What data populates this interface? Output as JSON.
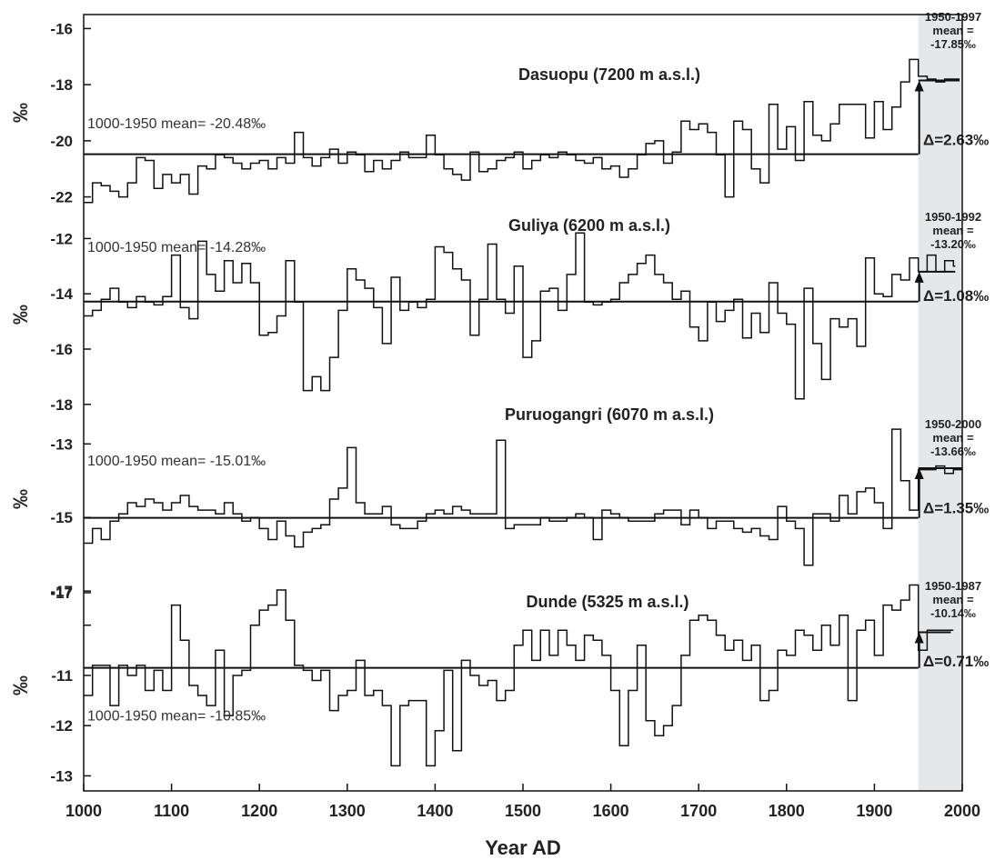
{
  "colors": {
    "line": "#111111",
    "shade": "#e6e7e9",
    "text": "#222222",
    "background": "#ffffff"
  },
  "chart_data": {
    "type": "line",
    "style": "step",
    "xlabel": "Year AD",
    "ylabel": "‰",
    "xlim": [
      1000,
      2000
    ],
    "xticks": [
      1000,
      1100,
      1200,
      1300,
      1400,
      1500,
      1600,
      1700,
      1800,
      1900,
      2000
    ],
    "shaded_range": [
      1950,
      2000
    ],
    "grid": false,
    "panels": [
      {
        "title": "Dasuopu (7200 m a.s.l.)",
        "ylim": [
          -22.5,
          -15.5
        ],
        "yticks": [
          -16,
          -18,
          -20,
          -22
        ],
        "baseline_label": "1000-1950 mean= -20.48‰",
        "baseline_mean": -20.48,
        "recent_lines": [
          "1950-1997",
          "mean =",
          "-17.85‰"
        ],
        "recent_range": [
          1950,
          1997
        ],
        "recent_mean": -17.85,
        "delta_label": "Δ=2.63‰",
        "x": [
          1000,
          1010,
          1020,
          1030,
          1040,
          1050,
          1060,
          1070,
          1080,
          1090,
          1100,
          1110,
          1120,
          1130,
          1140,
          1150,
          1160,
          1170,
          1180,
          1190,
          1200,
          1210,
          1220,
          1230,
          1240,
          1250,
          1260,
          1270,
          1280,
          1290,
          1300,
          1310,
          1320,
          1330,
          1340,
          1350,
          1360,
          1370,
          1380,
          1390,
          1400,
          1410,
          1420,
          1430,
          1440,
          1450,
          1460,
          1470,
          1480,
          1490,
          1500,
          1510,
          1520,
          1530,
          1540,
          1550,
          1560,
          1570,
          1580,
          1590,
          1600,
          1610,
          1620,
          1630,
          1640,
          1650,
          1660,
          1670,
          1680,
          1690,
          1700,
          1710,
          1720,
          1730,
          1740,
          1750,
          1760,
          1770,
          1780,
          1790,
          1800,
          1810,
          1820,
          1830,
          1840,
          1850,
          1860,
          1870,
          1880,
          1890,
          1900,
          1910,
          1920,
          1930,
          1940,
          1950,
          1960,
          1970,
          1980,
          1990
        ],
        "values": [
          -22.2,
          -21.5,
          -21.6,
          -21.8,
          -22.0,
          -21.5,
          -20.6,
          -20.7,
          -21.7,
          -21.2,
          -21.5,
          -21.2,
          -21.9,
          -20.9,
          -21.0,
          -20.5,
          -20.6,
          -20.8,
          -21.0,
          -20.8,
          -20.7,
          -21.0,
          -20.6,
          -20.8,
          -19.7,
          -20.6,
          -20.9,
          -20.6,
          -20.3,
          -20.8,
          -20.4,
          -20.5,
          -21.1,
          -20.7,
          -21.0,
          -20.7,
          -20.4,
          -20.6,
          -20.6,
          -19.8,
          -20.5,
          -21.0,
          -21.2,
          -21.4,
          -20.4,
          -21.1,
          -21.0,
          -20.7,
          -20.6,
          -20.4,
          -21.0,
          -20.7,
          -20.5,
          -20.6,
          -20.4,
          -20.5,
          -20.7,
          -20.8,
          -20.6,
          -21.0,
          -20.9,
          -21.3,
          -21.0,
          -20.5,
          -20.1,
          -20.0,
          -20.8,
          -20.4,
          -19.3,
          -19.6,
          -19.4,
          -19.7,
          -20.5,
          -22.0,
          -19.3,
          -19.6,
          -21.0,
          -21.5,
          -18.7,
          -20.3,
          -19.5,
          -20.7,
          -18.6,
          -19.8,
          -20.0,
          -19.4,
          -18.7,
          -18.7,
          -18.7,
          -19.9,
          -18.6,
          -19.6,
          -18.8,
          -17.9,
          -17.1,
          -17.7,
          -17.8,
          -17.9,
          -17.8,
          -17.8
        ]
      },
      {
        "title": "Guliya (6200 m a.s.l.)",
        "ylim": [
          -18.5,
          -11.0
        ],
        "yticks": [
          -12,
          -14,
          -16,
          -18
        ],
        "baseline_label": "1000-1950 mean= -14.28‰",
        "baseline_mean": -14.28,
        "recent_lines": [
          "1950-1992",
          "mean =",
          "-13.20‰"
        ],
        "recent_range": [
          1950,
          1992
        ],
        "recent_mean": -13.2,
        "delta_label": "Δ=1.08‰",
        "x": [
          1000,
          1010,
          1020,
          1030,
          1040,
          1050,
          1060,
          1070,
          1080,
          1090,
          1100,
          1110,
          1120,
          1130,
          1140,
          1150,
          1160,
          1170,
          1180,
          1190,
          1200,
          1210,
          1220,
          1230,
          1240,
          1250,
          1260,
          1270,
          1280,
          1290,
          1300,
          1310,
          1320,
          1330,
          1340,
          1350,
          1360,
          1370,
          1380,
          1390,
          1400,
          1410,
          1420,
          1430,
          1440,
          1450,
          1460,
          1470,
          1480,
          1490,
          1500,
          1510,
          1520,
          1530,
          1540,
          1550,
          1560,
          1570,
          1580,
          1590,
          1600,
          1610,
          1620,
          1630,
          1640,
          1650,
          1660,
          1670,
          1680,
          1690,
          1700,
          1710,
          1720,
          1730,
          1740,
          1750,
          1760,
          1770,
          1780,
          1790,
          1800,
          1810,
          1820,
          1830,
          1840,
          1850,
          1860,
          1870,
          1880,
          1890,
          1900,
          1910,
          1920,
          1930,
          1940,
          1950,
          1960,
          1970,
          1980,
          1990
        ],
        "values": [
          -14.8,
          -14.6,
          -14.2,
          -13.8,
          -14.3,
          -14.5,
          -14.1,
          -14.3,
          -14.4,
          -14.1,
          -12.6,
          -14.5,
          -14.9,
          -12.1,
          -13.3,
          -13.9,
          -12.8,
          -13.6,
          -12.9,
          -13.6,
          -15.5,
          -15.4,
          -14.8,
          -12.8,
          -14.3,
          -17.5,
          -17.0,
          -17.5,
          -16.3,
          -14.6,
          -13.1,
          -13.5,
          -13.8,
          -14.5,
          -15.8,
          -13.4,
          -14.6,
          -14.3,
          -14.5,
          -14.2,
          -12.3,
          -12.5,
          -13.1,
          -13.5,
          -15.5,
          -14.2,
          -12.2,
          -14.2,
          -14.7,
          -13.0,
          -16.3,
          -15.7,
          -13.9,
          -13.8,
          -14.6,
          -13.3,
          -11.8,
          -14.3,
          -14.4,
          -14.3,
          -14.2,
          -13.6,
          -13.3,
          -12.9,
          -12.6,
          -13.3,
          -13.6,
          -14.2,
          -13.9,
          -15.2,
          -15.7,
          -14.3,
          -15.0,
          -14.6,
          -14.2,
          -15.6,
          -14.7,
          -15.4,
          -13.6,
          -14.7,
          -15.1,
          -17.8,
          -13.8,
          -15.8,
          -17.1,
          -14.9,
          -15.2,
          -14.9,
          -15.9,
          -12.7,
          -14.0,
          -14.1,
          -13.3,
          -13.5,
          -12.7,
          -13.2,
          -12.6,
          -13.2,
          -12.8,
          -13.0
        ]
      },
      {
        "title": "Puruogangri (6070 m a.s.l.)",
        "ylim": [
          -16.7,
          -12.3
        ],
        "yticks": [
          -13,
          -15,
          -17
        ],
        "baseline_label": "1000-1950 mean= -15.01‰",
        "baseline_mean": -15.01,
        "recent_lines": [
          "1950-2000",
          "mean =",
          "-13.66‰"
        ],
        "recent_range": [
          1950,
          2000
        ],
        "recent_mean": -13.66,
        "delta_label": "Δ=1.35‰",
        "x": [
          1000,
          1010,
          1020,
          1030,
          1040,
          1050,
          1060,
          1070,
          1080,
          1090,
          1100,
          1110,
          1120,
          1130,
          1140,
          1150,
          1160,
          1170,
          1180,
          1190,
          1200,
          1210,
          1220,
          1230,
          1240,
          1250,
          1260,
          1270,
          1280,
          1290,
          1300,
          1310,
          1320,
          1330,
          1340,
          1350,
          1360,
          1370,
          1380,
          1390,
          1400,
          1410,
          1420,
          1430,
          1440,
          1450,
          1460,
          1470,
          1480,
          1490,
          1500,
          1510,
          1520,
          1530,
          1540,
          1550,
          1560,
          1570,
          1580,
          1590,
          1600,
          1610,
          1620,
          1630,
          1640,
          1650,
          1660,
          1670,
          1680,
          1690,
          1700,
          1710,
          1720,
          1730,
          1740,
          1750,
          1760,
          1770,
          1780,
          1790,
          1800,
          1810,
          1820,
          1830,
          1840,
          1850,
          1860,
          1870,
          1880,
          1890,
          1900,
          1910,
          1920,
          1930,
          1940,
          1950,
          1960,
          1970,
          1980,
          1990
        ],
        "values": [
          -15.7,
          -15.3,
          -15.6,
          -15.1,
          -14.9,
          -14.6,
          -14.7,
          -14.5,
          -14.6,
          -14.8,
          -14.6,
          -14.4,
          -14.7,
          -14.8,
          -14.8,
          -14.9,
          -14.6,
          -14.9,
          -15.1,
          -15.0,
          -15.3,
          -15.6,
          -15.1,
          -15.5,
          -15.8,
          -15.4,
          -15.3,
          -15.2,
          -14.5,
          -14.2,
          -13.1,
          -14.6,
          -14.9,
          -14.9,
          -14.7,
          -15.2,
          -15.3,
          -15.3,
          -15.1,
          -14.9,
          -14.8,
          -14.9,
          -14.7,
          -14.8,
          -14.9,
          -14.9,
          -14.9,
          -12.9,
          -15.3,
          -15.2,
          -15.2,
          -15.2,
          -15.0,
          -15.1,
          -15.1,
          -15.0,
          -14.9,
          -15.0,
          -15.6,
          -14.8,
          -14.9,
          -15.0,
          -15.1,
          -15.1,
          -15.1,
          -14.9,
          -14.8,
          -14.8,
          -15.2,
          -14.8,
          -15.0,
          -15.3,
          -15.1,
          -15.1,
          -15.3,
          -15.4,
          -15.3,
          -15.5,
          -15.6,
          -14.7,
          -15.1,
          -15.3,
          -16.3,
          -14.9,
          -14.9,
          -15.1,
          -14.4,
          -14.9,
          -14.3,
          -14.2,
          -14.6,
          -15.3,
          -12.6,
          -14.0,
          -14.8,
          -13.7,
          -13.7,
          -13.6,
          -13.8,
          -13.7
        ]
      },
      {
        "title": "Dunde (5325 m a.s.l.)",
        "ylim": [
          -13.3,
          -9.1
        ],
        "yticks": [
          -10,
          -11,
          -12,
          -13
        ],
        "top_tick_label": "-17",
        "baseline_label": "1000-1950 mean= -10.85‰",
        "baseline_mean": -10.85,
        "recent_lines": [
          "1950-1987",
          "mean =",
          "-10.14‰"
        ],
        "recent_range": [
          1950,
          1987
        ],
        "recent_mean": -10.14,
        "delta_label": "Δ=0.71‰",
        "x": [
          1000,
          1010,
          1020,
          1030,
          1040,
          1050,
          1060,
          1070,
          1080,
          1090,
          1100,
          1110,
          1120,
          1130,
          1140,
          1150,
          1160,
          1170,
          1180,
          1190,
          1200,
          1210,
          1220,
          1230,
          1240,
          1250,
          1260,
          1270,
          1280,
          1290,
          1300,
          1310,
          1320,
          1330,
          1340,
          1350,
          1360,
          1370,
          1380,
          1390,
          1400,
          1410,
          1420,
          1430,
          1440,
          1450,
          1460,
          1470,
          1480,
          1490,
          1500,
          1510,
          1520,
          1530,
          1540,
          1550,
          1560,
          1570,
          1580,
          1590,
          1600,
          1610,
          1620,
          1630,
          1640,
          1650,
          1660,
          1670,
          1680,
          1690,
          1700,
          1710,
          1720,
          1730,
          1740,
          1750,
          1760,
          1770,
          1780,
          1790,
          1800,
          1810,
          1820,
          1830,
          1840,
          1850,
          1860,
          1870,
          1880,
          1890,
          1900,
          1910,
          1920,
          1930,
          1940,
          1950,
          1960,
          1970,
          1980,
          1990
        ],
        "values": [
          -11.4,
          -10.8,
          -10.8,
          -11.6,
          -10.8,
          -11.0,
          -10.8,
          -11.3,
          -10.9,
          -11.3,
          -9.6,
          -10.3,
          -11.2,
          -11.4,
          -11.6,
          -10.5,
          -11.8,
          -11.0,
          -10.9,
          -10.0,
          -9.7,
          -9.6,
          -9.3,
          -9.9,
          -10.8,
          -10.9,
          -11.1,
          -10.9,
          -11.7,
          -11.4,
          -11.3,
          -10.7,
          -11.4,
          -11.3,
          -11.6,
          -12.8,
          -11.6,
          -11.5,
          -11.5,
          -12.8,
          -12.1,
          -10.9,
          -12.5,
          -10.7,
          -11.0,
          -11.2,
          -11.1,
          -11.5,
          -11.3,
          -10.4,
          -10.1,
          -10.7,
          -10.1,
          -10.6,
          -10.1,
          -10.4,
          -10.7,
          -10.2,
          -10.3,
          -10.6,
          -11.3,
          -12.4,
          -11.3,
          -10.4,
          -11.9,
          -12.2,
          -12.0,
          -11.6,
          -10.6,
          -9.9,
          -9.8,
          -9.9,
          -10.2,
          -10.5,
          -10.3,
          -10.7,
          -10.4,
          -11.5,
          -11.3,
          -10.5,
          -10.6,
          -10.1,
          -10.2,
          -10.5,
          -10.0,
          -10.4,
          -9.8,
          -11.5,
          -10.1,
          -9.9,
          -10.6,
          -9.6,
          -9.7,
          -9.5,
          -9.2,
          -10.5,
          -10.1,
          -10.1,
          -10.1,
          -10.1
        ]
      }
    ]
  }
}
